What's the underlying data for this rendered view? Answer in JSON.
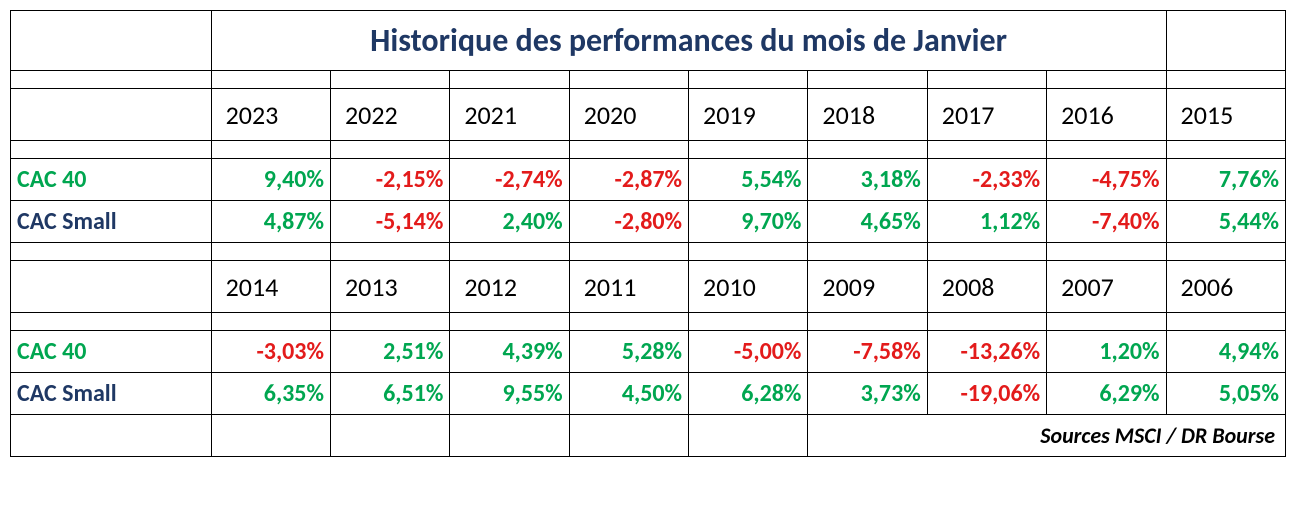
{
  "title": "Historique des performances du mois de Janvier",
  "footer": "Sources MSCI / DR Bourse",
  "block1": {
    "years": [
      "2023",
      "2022",
      "2021",
      "2020",
      "2019",
      "2018",
      "2017",
      "2016",
      "2015"
    ],
    "rows": [
      {
        "label": "CAC 40",
        "label_style": "rowlabel-cac40",
        "vals": [
          {
            "t": "9,40%",
            "c": "pos"
          },
          {
            "t": "-2,15%",
            "c": "neg"
          },
          {
            "t": "-2,74%",
            "c": "neg"
          },
          {
            "t": "-2,87%",
            "c": "neg"
          },
          {
            "t": "5,54%",
            "c": "pos"
          },
          {
            "t": "3,18%",
            "c": "pos"
          },
          {
            "t": "-2,33%",
            "c": "neg"
          },
          {
            "t": "-4,75%",
            "c": "neg"
          },
          {
            "t": "7,76%",
            "c": "pos"
          }
        ]
      },
      {
        "label": "CAC Small",
        "label_style": "rowlabel-cacsmall",
        "vals": [
          {
            "t": "4,87%",
            "c": "pos"
          },
          {
            "t": "-5,14%",
            "c": "neg"
          },
          {
            "t": "2,40%",
            "c": "pos"
          },
          {
            "t": "-2,80%",
            "c": "neg"
          },
          {
            "t": "9,70%",
            "c": "pos"
          },
          {
            "t": "4,65%",
            "c": "pos"
          },
          {
            "t": "1,12%",
            "c": "pos"
          },
          {
            "t": "-7,40%",
            "c": "neg"
          },
          {
            "t": "5,44%",
            "c": "pos"
          }
        ]
      }
    ]
  },
  "block2": {
    "years": [
      "2014",
      "2013",
      "2012",
      "2011",
      "2010",
      "2009",
      "2008",
      "2007",
      "2006"
    ],
    "rows": [
      {
        "label": "CAC 40",
        "label_style": "rowlabel-cac40",
        "vals": [
          {
            "t": "-3,03%",
            "c": "neg"
          },
          {
            "t": "2,51%",
            "c": "pos"
          },
          {
            "t": "4,39%",
            "c": "pos"
          },
          {
            "t": "5,28%",
            "c": "pos"
          },
          {
            "t": "-5,00%",
            "c": "neg"
          },
          {
            "t": "-7,58%",
            "c": "neg"
          },
          {
            "t": "-13,26%",
            "c": "neg"
          },
          {
            "t": "1,20%",
            "c": "pos"
          },
          {
            "t": "4,94%",
            "c": "pos"
          }
        ]
      },
      {
        "label": "CAC Small",
        "label_style": "rowlabel-cacsmall",
        "vals": [
          {
            "t": "6,35%",
            "c": "pos"
          },
          {
            "t": "6,51%",
            "c": "pos"
          },
          {
            "t": "9,55%",
            "c": "pos"
          },
          {
            "t": "4,50%",
            "c": "pos"
          },
          {
            "t": "6,28%",
            "c": "pos"
          },
          {
            "t": "3,73%",
            "c": "pos"
          },
          {
            "t": "-19,06%",
            "c": "neg"
          },
          {
            "t": "6,29%",
            "c": "pos"
          },
          {
            "t": "5,05%",
            "c": "pos"
          }
        ]
      }
    ]
  }
}
